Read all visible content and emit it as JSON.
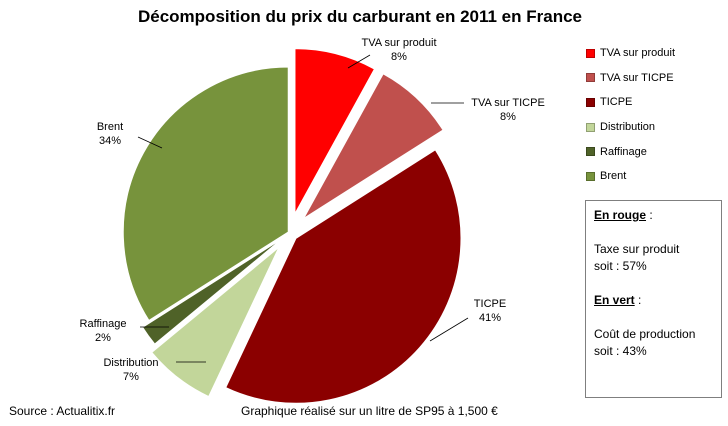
{
  "chart_data": {
    "type": "pie",
    "title": "Décomposition du prix du carburant en 2011 en France",
    "slices": [
      {
        "name": "TVA sur produit",
        "label": "TVA sur produit",
        "value": 8,
        "pct_label": "8%",
        "color": "#ff0000"
      },
      {
        "name": "TVA sur TICPE",
        "label": "TVA  sur TICPE",
        "value": 8,
        "pct_label": "8%",
        "color": "#c0504d"
      },
      {
        "name": "TICPE",
        "label": "TICPE",
        "value": 41,
        "pct_label": "41%",
        "color": "#8b0000"
      },
      {
        "name": "Distribution",
        "label": "Distribution",
        "value": 7,
        "pct_label": "7%",
        "color": "#c2d69a"
      },
      {
        "name": "Raffinage",
        "label": "Raffinage",
        "value": 2,
        "pct_label": "2%",
        "color": "#4f6228"
      },
      {
        "name": "Brent",
        "label": "Brent",
        "value": 34,
        "pct_label": "34%",
        "color": "#77933c"
      }
    ],
    "legend_position": "right"
  },
  "textbox": {
    "head1": "En rouge",
    "colon1": " :",
    "line1": "Taxe sur produit",
    "line2": "soit :  57%",
    "head2": "En vert",
    "colon2": " :",
    "line3": "Coût de production",
    "line4": "soit : 43%"
  },
  "footer": {
    "source": "Source : Actualitix.fr",
    "note": "Graphique réalisé sur un litre de SP95 à 1,500  €"
  }
}
